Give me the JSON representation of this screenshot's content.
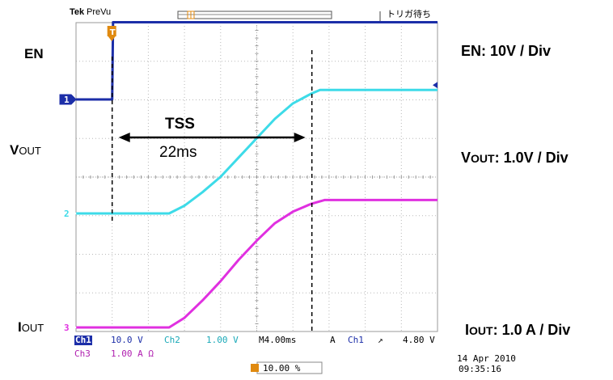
{
  "header": {
    "brand": "Tek",
    "mode": "PreVu",
    "trigger_status": "トリガ待ち"
  },
  "labels": {
    "left": {
      "en": "EN",
      "vout_prefix": "V",
      "vout_suffix": "OUT",
      "iout_prefix": "I",
      "iout_suffix": "OUT"
    },
    "right": {
      "en": "EN: 10V / Div",
      "vout_prefix": "V",
      "vout_suffix": "OUT",
      "vout_scale": ": 1.0V / Div",
      "iout_prefix": "I",
      "iout_suffix": "OUT",
      "iout_scale": ": 1.0 A / Div"
    }
  },
  "annotation": {
    "tss_label": "TSS",
    "tss_value": "22ms"
  },
  "channel_markers": {
    "ch1": "1",
    "ch2": "2",
    "ch3": "3",
    "trigger": "T"
  },
  "status_bar": {
    "ch1_name": "Ch1",
    "ch1_scale": "10.0 V",
    "ch2_name": "Ch2",
    "ch2_scale": "1.00 V",
    "timebase": "M4.00ms",
    "trig_mode": "A",
    "trig_source": "Ch1",
    "trig_slope": "↗",
    "trig_level": "4.80 V",
    "ch3_name": "Ch3",
    "ch3_scale": "1.00 A Ω",
    "position": "10.00 %"
  },
  "timestamp": {
    "date": "14 Apr 2010",
    "time": "09:35:16"
  },
  "colors": {
    "ch1": "#1c2ea8",
    "ch2": "#3ddbe8",
    "ch3": "#e030e0",
    "grid": "#b8b8b8",
    "marker_orange": "#e08a10"
  },
  "chart_data": {
    "type": "line",
    "x_divisions": 10,
    "y_divisions": 8,
    "time_per_div_ms": 4.0,
    "x_unit": "ms",
    "x_range": [
      0,
      40
    ],
    "series": [
      {
        "name": "EN",
        "channel": "Ch1",
        "volts_per_div": 10,
        "points": [
          [
            0,
            0
          ],
          [
            4,
            0
          ],
          [
            4.1,
            20
          ],
          [
            40,
            20
          ]
        ]
      },
      {
        "name": "VOUT",
        "channel": "Ch2",
        "volts_per_div": 1.0,
        "points": [
          [
            0,
            0
          ],
          [
            10.3,
            0
          ],
          [
            12,
            0.2
          ],
          [
            14,
            0.55
          ],
          [
            16,
            0.95
          ],
          [
            18,
            1.45
          ],
          [
            20,
            1.95
          ],
          [
            22,
            2.45
          ],
          [
            24,
            2.85
          ],
          [
            26,
            3.1
          ],
          [
            27,
            3.2
          ],
          [
            40,
            3.2
          ]
        ]
      },
      {
        "name": "IOUT",
        "channel": "Ch3",
        "amps_per_div": 1.0,
        "points": [
          [
            0,
            0
          ],
          [
            10.3,
            0
          ],
          [
            12,
            0.25
          ],
          [
            14,
            0.7
          ],
          [
            16,
            1.2
          ],
          [
            18,
            1.75
          ],
          [
            20,
            2.25
          ],
          [
            22,
            2.7
          ],
          [
            24,
            3.0
          ],
          [
            26,
            3.2
          ],
          [
            27.5,
            3.3
          ],
          [
            40,
            3.3
          ]
        ]
      }
    ],
    "markers": {
      "tss_start_ms": 4.0,
      "tss_end_ms": 26.1,
      "tss_ms": 22
    }
  }
}
